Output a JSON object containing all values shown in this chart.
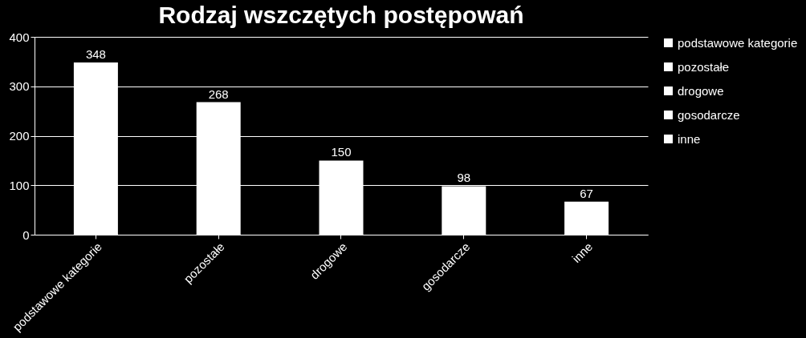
{
  "chart_data": {
    "type": "bar",
    "title": "Rodzaj wszczętych postępowań",
    "categories": [
      "podstawowe kategorie",
      "pozostałe",
      "drogowe",
      "gosodarcze",
      "inne"
    ],
    "series": [
      {
        "name": "podstawowe kategorie",
        "color": "#ffffff",
        "values": [
          348,
          null,
          null,
          null,
          null
        ]
      },
      {
        "name": "pozostałe",
        "color": "#ffffff",
        "values": [
          null,
          268,
          null,
          null,
          null
        ]
      },
      {
        "name": "drogowe",
        "color": "#ffffff",
        "values": [
          null,
          null,
          150,
          null,
          null
        ]
      },
      {
        "name": "gosodarcze",
        "color": "#ffffff",
        "values": [
          null,
          null,
          null,
          98,
          null
        ]
      },
      {
        "name": "inne",
        "color": "#ffffff",
        "values": [
          null,
          null,
          null,
          null,
          67
        ]
      }
    ],
    "ylim": [
      0,
      400
    ],
    "yticks": [
      0,
      100,
      200,
      300,
      400
    ],
    "grid": "y",
    "legend": "right",
    "data_labels": true
  }
}
